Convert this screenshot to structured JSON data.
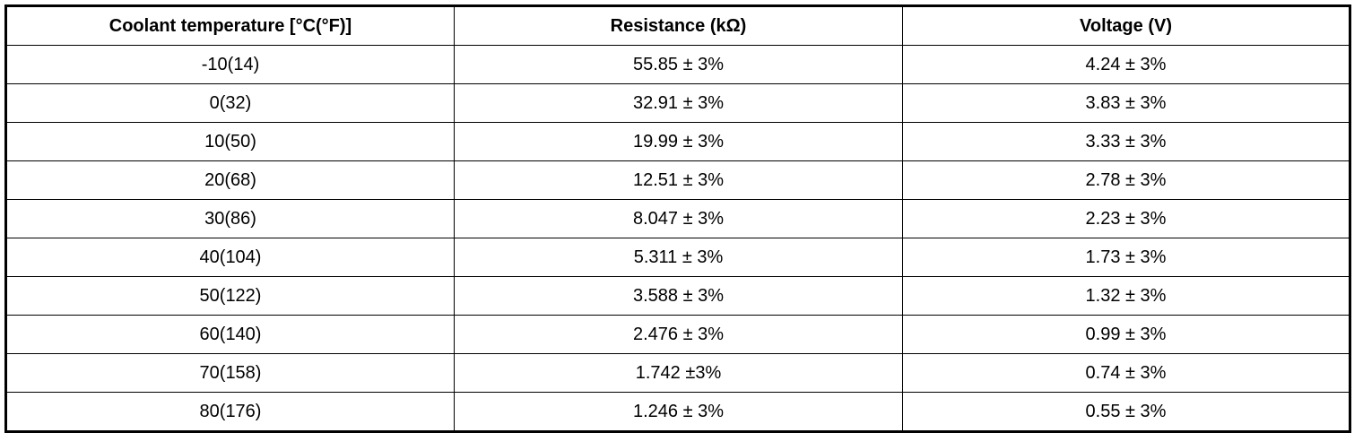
{
  "table": {
    "headers": [
      "Coolant temperature [°C(°F)]",
      "Resistance (kΩ)",
      "Voltage (V)"
    ],
    "rows": [
      [
        "-10(14)",
        "55.85 ± 3%",
        "4.24 ± 3%"
      ],
      [
        "0(32)",
        "32.91 ± 3%",
        "3.83 ± 3%"
      ],
      [
        "10(50)",
        "19.99 ± 3%",
        "3.33 ± 3%"
      ],
      [
        "20(68)",
        "12.51 ± 3%",
        "2.78 ± 3%"
      ],
      [
        "30(86)",
        "8.047 ± 3%",
        "2.23 ± 3%"
      ],
      [
        "40(104)",
        "5.311 ± 3%",
        "1.73 ± 3%"
      ],
      [
        "50(122)",
        "3.588 ± 3%",
        "1.32 ± 3%"
      ],
      [
        "60(140)",
        "2.476 ± 3%",
        "0.99 ± 3%"
      ],
      [
        "70(158)",
        "1.742 ±3%",
        "0.74 ± 3%"
      ],
      [
        "80(176)",
        "1.246 ± 3%",
        "0.55 ± 3%"
      ]
    ]
  }
}
